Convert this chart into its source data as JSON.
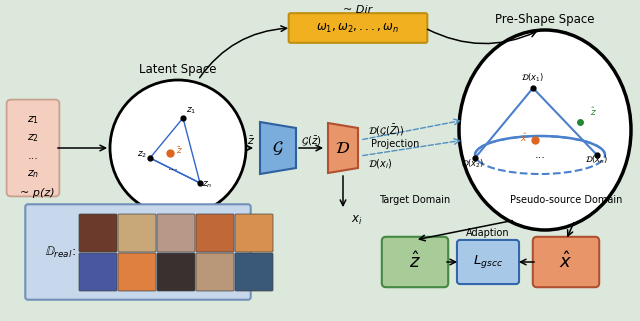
{
  "bg_color": "#dde8dc",
  "latent_space_label": "Latent Space",
  "pre_shape_label": "Pre-Shape Space",
  "dir_label": "~ Dir",
  "omega_label": "$\\omega_1, \\omega_2, ..., \\omega_n$",
  "pz_label": "~ p(z)",
  "G_label": "$\\mathcal{G}$",
  "D_label": "$\\mathcal{D}$",
  "zbar_label": "$\\bar{z}$",
  "Gzbar_label": "$\\mathcal{G}(\\bar{z})$",
  "DGzbar_label": "$\\mathcal{D}(\\mathcal{G}(\\bar{Z}))$",
  "projection_label": "Projection",
  "Dxi_label": "$\\mathcal{D}(x_i)$",
  "xi_label": "$x_i$",
  "target_domain_label": "Target Domain",
  "pseudo_source_label": "Pseudo-source Domain",
  "adaption_label": "Adaption",
  "zhat_label": "$\\hat{z}$",
  "Lgscc_label": "$L_{gscc}$",
  "xhat_label": "$\\hat{x}$",
  "omega_box_color": "#f0b020",
  "G_box_color": "#7aacdc",
  "D_box_color": "#e8956a",
  "z_box_color": "#f4cfc0",
  "zhat_box_color": "#a8cc98",
  "xhat_box_color": "#e8956a",
  "Lgscc_box_color": "#a8c8e8",
  "dreal_box_color": "#c8d8ec"
}
